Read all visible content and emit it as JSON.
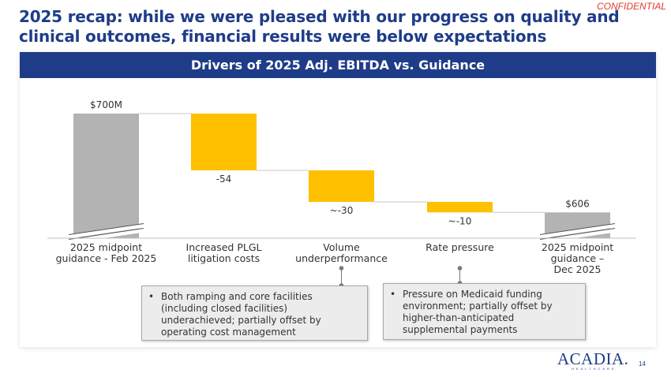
{
  "header": {
    "confidential_label": "CONFIDENTIAL",
    "title": "2025 recap: while we were pleased with our progress on quality and clinical outcomes, financial results were below expectations"
  },
  "panel": {
    "title": "Drivers of 2025 Adj. EBITDA vs. Guidance"
  },
  "colors": {
    "brand": "#1f3c88",
    "baseline_bar": "#b3b3b3",
    "driver_bar": "#ffc000",
    "confidential": "#e23a2e"
  },
  "chart_data": {
    "type": "waterfall",
    "title": "Drivers of 2025 Adj. EBITDA vs. Guidance",
    "unit": "$M",
    "axis_break": true,
    "steps": [
      {
        "label": "2025 midpoint guidance - Feb 2025",
        "kind": "total",
        "value": 700,
        "value_label": "$700M"
      },
      {
        "label": "Increased PLGL litigation costs",
        "kind": "delta",
        "value": -54,
        "value_label": "-54"
      },
      {
        "label": "Volume underperformance",
        "kind": "delta",
        "value": -30,
        "value_label": "~-30"
      },
      {
        "label": "Rate pressure",
        "kind": "delta",
        "value": -10,
        "value_label": "~-10"
      },
      {
        "label": "2025 midpoint guidance – Dec 2025",
        "kind": "total",
        "value": 606,
        "value_label": "$606"
      }
    ]
  },
  "category_labels": [
    [
      "2025 midpoint",
      "guidance - Feb 2025"
    ],
    [
      "Increased PLGL",
      "litigation costs"
    ],
    [
      "Volume",
      "underperformance"
    ],
    [
      "Rate pressure"
    ],
    [
      "2025 midpoint",
      "guidance –",
      "Dec 2025"
    ]
  ],
  "callouts": [
    {
      "bullet": "•",
      "lines": [
        "Both ramping and core facilities",
        "(including closed facilities)",
        "underachieved; partially offset by",
        "operating cost management"
      ]
    },
    {
      "bullet": "•",
      "lines": [
        "Pressure on Medicaid funding",
        "environment; partially offset by",
        "higher-than-anticipated",
        "supplemental payments"
      ]
    }
  ],
  "footer": {
    "logo_name": "ACADIA.",
    "logo_sub": "HEALTHCARE",
    "page_number": "14"
  }
}
